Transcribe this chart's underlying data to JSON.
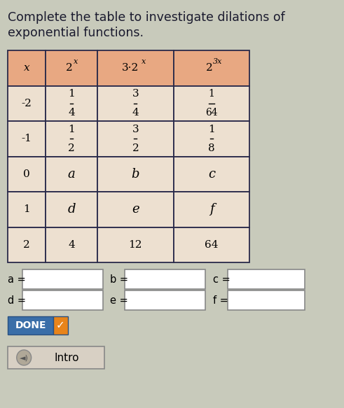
{
  "title_line1": "Complete the table to investigate dilations of",
  "title_line2": "exponential functions.",
  "title_fontsize": 12.5,
  "title_color": "#1a1a2e",
  "header_bg": "#E8A882",
  "cell_bg_light": "#EDE0D0",
  "cell_bg_white": "#F0E8DC",
  "border_color": "#2a2a4a",
  "background_color": "#C8CABB",
  "rows": [
    [
      "-2",
      "frac:1:4",
      "frac:3:4",
      "frac:1:64"
    ],
    [
      "-1",
      "frac:1:2",
      "frac:3:2",
      "frac:1:8"
    ],
    [
      "0",
      "a",
      "b",
      "c"
    ],
    [
      "1",
      "d",
      "e",
      "f"
    ],
    [
      "2",
      "4",
      "12",
      "64"
    ]
  ],
  "done_bg": "#E8A020",
  "done_text": "DONE",
  "done_check_bg": "#8B6914",
  "intro_text": "Intro",
  "input_box_bg": "#FFFFFF",
  "input_box_border": "#888888"
}
